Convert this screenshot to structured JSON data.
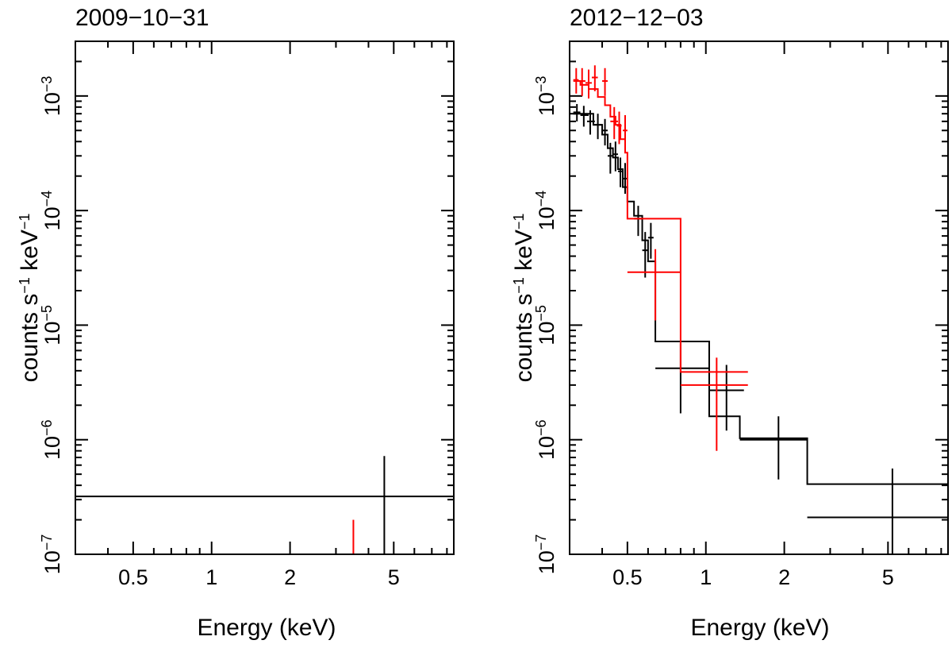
{
  "colors": {
    "black": "#000000",
    "red": "#ff0000",
    "background": "#ffffff"
  },
  "chart_data": [
    {
      "type": "step-spectrum",
      "title": "2009−10−31",
      "xlabel": "Energy (keV)",
      "ylabel": {
        "main": "counts s",
        "exp1": "−1",
        "mid": " keV",
        "exp2": "−1"
      },
      "xscale": "log",
      "yscale": "log",
      "xlim": [
        0.3,
        8.5
      ],
      "ylim": [
        1e-07,
        0.003
      ],
      "xticks": [
        {
          "value": 0.5,
          "label": "0.5"
        },
        {
          "value": 1,
          "label": "1"
        },
        {
          "value": 2,
          "label": "2"
        },
        {
          "value": 5,
          "label": "5"
        }
      ],
      "yticks": [
        {
          "value": 1e-07,
          "base": "10",
          "exp": "−7"
        },
        {
          "value": 1e-06,
          "base": "10",
          "exp": "−6"
        },
        {
          "value": 1e-05,
          "base": "10",
          "exp": "−5"
        },
        {
          "value": 0.0001,
          "base": "10",
          "exp": "−4"
        },
        {
          "value": 0.001,
          "base": "10",
          "exp": "−3"
        }
      ],
      "series": [
        {
          "name": "black data",
          "color": "#000000",
          "points": [
            {
              "x": 4.6,
              "y": 3.2e-07,
              "xlo": 0.3,
              "xhi": 8.5,
              "ylo": 1e-07,
              "yhi": 7.2e-07
            }
          ],
          "model": []
        },
        {
          "name": "red data",
          "color": "#ff0000",
          "points": [
            {
              "x": 3.5,
              "y": 1.4e-07,
              "xlo": 3.5,
              "xhi": 3.5,
              "ylo": 1e-07,
              "yhi": 2e-07
            }
          ],
          "model": []
        }
      ]
    },
    {
      "type": "step-spectrum",
      "title": "2012−12−03",
      "xlabel": "Energy (keV)",
      "ylabel": {
        "main": "counts s",
        "exp1": "−1",
        "mid": " keV",
        "exp2": "−1"
      },
      "xscale": "log",
      "yscale": "log",
      "xlim": [
        0.3,
        8.5
      ],
      "ylim": [
        1e-07,
        0.003
      ],
      "xticks": [
        {
          "value": 0.5,
          "label": "0.5"
        },
        {
          "value": 1,
          "label": "1"
        },
        {
          "value": 2,
          "label": "2"
        },
        {
          "value": 5,
          "label": "5"
        }
      ],
      "yticks": [
        {
          "value": 1e-07,
          "base": "10",
          "exp": "−7"
        },
        {
          "value": 1e-06,
          "base": "10",
          "exp": "−6"
        },
        {
          "value": 1e-05,
          "base": "10",
          "exp": "−5"
        },
        {
          "value": 0.0001,
          "base": "10",
          "exp": "−4"
        },
        {
          "value": 0.001,
          "base": "10",
          "exp": "−3"
        }
      ],
      "series": [
        {
          "name": "black data",
          "color": "#000000",
          "points": [
            {
              "x": 0.32,
              "y": 0.00072,
              "xlo": 0.31,
              "xhi": 0.33,
              "ylo": 0.0006,
              "yhi": 0.00085
            },
            {
              "x": 0.34,
              "y": 0.00068,
              "xlo": 0.33,
              "xhi": 0.355,
              "ylo": 0.00054,
              "yhi": 0.00082
            },
            {
              "x": 0.36,
              "y": 0.0006,
              "xlo": 0.35,
              "xhi": 0.375,
              "ylo": 0.00046,
              "yhi": 0.00075
            },
            {
              "x": 0.385,
              "y": 0.00056,
              "xlo": 0.37,
              "xhi": 0.4,
              "ylo": 0.00042,
              "yhi": 0.0007
            },
            {
              "x": 0.41,
              "y": 0.0005,
              "xlo": 0.4,
              "xhi": 0.42,
              "ylo": 0.00037,
              "yhi": 0.00063
            },
            {
              "x": 0.43,
              "y": 0.0003,
              "xlo": 0.42,
              "xhi": 0.44,
              "ylo": 0.00021,
              "yhi": 0.00039
            },
            {
              "x": 0.45,
              "y": 0.00031,
              "xlo": 0.44,
              "xhi": 0.46,
              "ylo": 0.00022,
              "yhi": 0.0004
            },
            {
              "x": 0.47,
              "y": 0.00022,
              "xlo": 0.46,
              "xhi": 0.48,
              "ylo": 0.00016,
              "yhi": 0.00029
            },
            {
              "x": 0.49,
              "y": 0.00019,
              "xlo": 0.48,
              "xhi": 0.5,
              "ylo": 0.00014,
              "yhi": 0.00026
            },
            {
              "x": 0.55,
              "y": 8.5e-05,
              "xlo": 0.53,
              "xhi": 0.57,
              "ylo": 6e-05,
              "yhi": 0.00011
            },
            {
              "x": 0.585,
              "y": 4.5e-05,
              "xlo": 0.57,
              "xhi": 0.6,
              "ylo": 2.6e-05,
              "yhi": 6.5e-05
            },
            {
              "x": 0.615,
              "y": 5.8e-05,
              "xlo": 0.6,
              "xhi": 0.63,
              "ylo": 3.8e-05,
              "yhi": 7.8e-05
            },
            {
              "x": 0.8,
              "y": 4.2e-06,
              "xlo": 0.64,
              "xhi": 1.03,
              "ylo": 1.7e-06,
              "yhi": 7e-06
            },
            {
              "x": 1.2,
              "y": 2.7e-06,
              "xlo": 1.03,
              "xhi": 1.4,
              "ylo": 1.2e-06,
              "yhi": 4.5e-06
            },
            {
              "x": 1.9,
              "y": 1e-06,
              "xlo": 1.35,
              "xhi": 2.45,
              "ylo": 4.5e-07,
              "yhi": 1.6e-06
            },
            {
              "x": 5.2,
              "y": 2.1e-07,
              "xlo": 2.45,
              "xhi": 8.5,
              "ylo": 1e-07,
              "yhi": 5.6e-07
            }
          ],
          "model": [
            {
              "x1": 0.31,
              "x2": 0.37,
              "y": 0.0007
            },
            {
              "x1": 0.37,
              "x2": 0.4,
              "y": 0.00056
            },
            {
              "x1": 0.4,
              "x2": 0.42,
              "y": 0.00046
            },
            {
              "x1": 0.42,
              "x2": 0.44,
              "y": 0.00035
            },
            {
              "x1": 0.44,
              "x2": 0.46,
              "y": 0.00029
            },
            {
              "x1": 0.46,
              "x2": 0.48,
              "y": 0.00023
            },
            {
              "x1": 0.48,
              "x2": 0.5,
              "y": 0.00016
            },
            {
              "x1": 0.5,
              "x2": 0.53,
              "y": 0.00012
            },
            {
              "x1": 0.53,
              "x2": 0.57,
              "y": 9e-05
            },
            {
              "x1": 0.57,
              "x2": 0.6,
              "y": 5.5e-05
            },
            {
              "x1": 0.6,
              "x2": 0.64,
              "y": 3.6e-05
            },
            {
              "x1": 0.64,
              "x2": 1.03,
              "y": 7.2e-06
            },
            {
              "x1": 1.03,
              "x2": 1.35,
              "y": 1.6e-06
            },
            {
              "x1": 1.35,
              "x2": 2.45,
              "y": 1.03e-06
            },
            {
              "x1": 2.45,
              "x2": 8.5,
              "y": 4.1e-07
            }
          ]
        },
        {
          "name": "red data",
          "color": "#ff0000",
          "points": [
            {
              "x": 0.318,
              "y": 0.00138,
              "xlo": 0.31,
              "xhi": 0.325,
              "ylo": 0.00105,
              "yhi": 0.00175
            },
            {
              "x": 0.335,
              "y": 0.00135,
              "xlo": 0.325,
              "xhi": 0.345,
              "ylo": 0.001,
              "yhi": 0.00175
            },
            {
              "x": 0.355,
              "y": 0.0013,
              "xlo": 0.345,
              "xhi": 0.365,
              "ylo": 0.00095,
              "yhi": 0.0017
            },
            {
              "x": 0.375,
              "y": 0.00145,
              "xlo": 0.365,
              "xhi": 0.385,
              "ylo": 0.0011,
              "yhi": 0.00185
            },
            {
              "x": 0.41,
              "y": 0.00135,
              "xlo": 0.4,
              "xhi": 0.42,
              "ylo": 0.001,
              "yhi": 0.00175
            },
            {
              "x": 0.445,
              "y": 0.0006,
              "xlo": 0.43,
              "xhi": 0.46,
              "ylo": 0.00042,
              "yhi": 0.0008
            },
            {
              "x": 0.465,
              "y": 0.00055,
              "xlo": 0.455,
              "xhi": 0.475,
              "ylo": 0.00038,
              "yhi": 0.00073
            },
            {
              "x": 0.49,
              "y": 0.0005,
              "xlo": 0.48,
              "xhi": 0.5,
              "ylo": 0.00034,
              "yhi": 0.00068
            },
            {
              "x": 0.64,
              "y": 2.9e-05,
              "xlo": 0.5,
              "xhi": 0.8,
              "ylo": 1.1e-05,
              "yhi": 4.6e-05
            },
            {
              "x": 1.1,
              "y": 3e-06,
              "xlo": 0.8,
              "xhi": 1.45,
              "ylo": 8e-07,
              "yhi": 5.2e-06
            }
          ],
          "model": [
            {
              "x1": 0.31,
              "x2": 0.33,
              "y": 0.00135
            },
            {
              "x1": 0.33,
              "x2": 0.355,
              "y": 0.00125
            },
            {
              "x1": 0.355,
              "x2": 0.385,
              "y": 0.00115
            },
            {
              "x1": 0.385,
              "x2": 0.41,
              "y": 0.00098
            },
            {
              "x1": 0.41,
              "x2": 0.43,
              "y": 0.00083
            },
            {
              "x1": 0.43,
              "x2": 0.45,
              "y": 0.00066
            },
            {
              "x1": 0.45,
              "x2": 0.47,
              "y": 0.00056
            },
            {
              "x1": 0.47,
              "x2": 0.49,
              "y": 0.00042
            },
            {
              "x1": 0.49,
              "x2": 0.5,
              "y": 0.00032
            },
            {
              "x1": 0.5,
              "x2": 0.8,
              "y": 8.5e-05
            },
            {
              "x1": 0.8,
              "x2": 1.45,
              "y": 3.9e-06
            }
          ]
        }
      ]
    }
  ]
}
